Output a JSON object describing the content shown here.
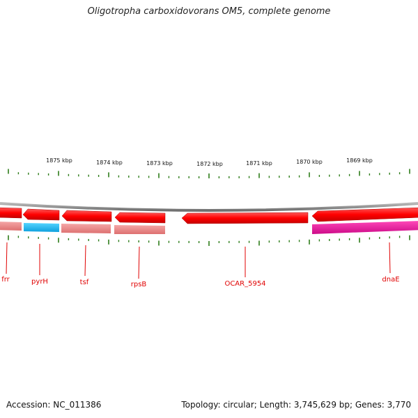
{
  "header": {
    "title": "Oligotropha carboxidovorans OM5, complete genome"
  },
  "ruler": {
    "ticks": [
      "1875 kbp",
      "1874 kbp",
      "1873 kbp",
      "1872 kbp",
      "1871 kbp",
      "1870 kbp",
      "1869 kbp"
    ]
  },
  "genes": [
    {
      "label": "frr",
      "color": "#ff0000"
    },
    {
      "label": "pyrH",
      "color": "#ff0000"
    },
    {
      "label": "tsf",
      "color": "#ff0000"
    },
    {
      "label": "rpsB",
      "color": "#ff0000"
    },
    {
      "label": "OCAR_5954",
      "color": "#ff0000"
    },
    {
      "label": "dnaE",
      "color": "#ff0000"
    }
  ],
  "colors": {
    "feature_red": "#ff1010",
    "feature_pink": "#ee8888",
    "feature_blue": "#22bbee",
    "feature_magenta": "#ee1199",
    "tick_green": "#2e7d1a",
    "backbone_gray": "#8a8a8a"
  },
  "footer": {
    "accession": "Accession: NC_011386",
    "summary": "Topology: circular; Length: 3,745,629 bp; Genes: 3,770"
  }
}
